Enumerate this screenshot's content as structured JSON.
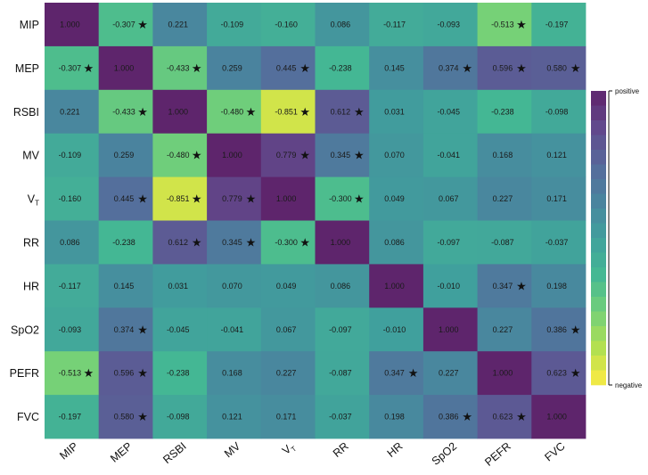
{
  "chart_data": {
    "type": "heatmap",
    "title": "",
    "xlabel": "",
    "ylabel": "",
    "rows": [
      "MIP",
      "MEP",
      "RSBI",
      "MV",
      "VT",
      "RR",
      "HR",
      "SpO2",
      "PEFR",
      "FVC"
    ],
    "columns": [
      "MIP",
      "MEP",
      "RSBI",
      "MV",
      "VT",
      "RR",
      "HR",
      "SpO2",
      "PEFR",
      "FVC"
    ],
    "row_labels": [
      {
        "main": "MIP",
        "sub": ""
      },
      {
        "main": "MEP",
        "sub": ""
      },
      {
        "main": "RSBI",
        "sub": ""
      },
      {
        "main": "MV",
        "sub": ""
      },
      {
        "main": "V",
        "sub": "T"
      },
      {
        "main": "RR",
        "sub": ""
      },
      {
        "main": "HR",
        "sub": ""
      },
      {
        "main": "SpO2",
        "sub": ""
      },
      {
        "main": "PEFR",
        "sub": ""
      },
      {
        "main": "FVC",
        "sub": ""
      }
    ],
    "column_labels": [
      {
        "main": "MIP",
        "sub": ""
      },
      {
        "main": "MEP",
        "sub": ""
      },
      {
        "main": "RSBI",
        "sub": ""
      },
      {
        "main": "MV",
        "sub": ""
      },
      {
        "main": "V",
        "sub": "T"
      },
      {
        "main": "RR",
        "sub": ""
      },
      {
        "main": "HR",
        "sub": ""
      },
      {
        "main": "SpO2",
        "sub": ""
      },
      {
        "main": "PEFR",
        "sub": ""
      },
      {
        "main": "FVC",
        "sub": ""
      }
    ],
    "values": [
      [
        1.0,
        -0.307,
        0.221,
        -0.109,
        -0.16,
        0.086,
        -0.117,
        -0.093,
        -0.513,
        -0.197
      ],
      [
        -0.307,
        1.0,
        -0.433,
        0.259,
        0.445,
        -0.238,
        0.145,
        0.374,
        0.596,
        0.58
      ],
      [
        0.221,
        -0.433,
        1.0,
        -0.48,
        -0.851,
        0.612,
        0.031,
        -0.045,
        -0.238,
        -0.098
      ],
      [
        -0.109,
        0.259,
        -0.48,
        1.0,
        0.779,
        0.345,
        0.07,
        -0.041,
        0.168,
        0.121
      ],
      [
        -0.16,
        0.445,
        -0.851,
        0.779,
        1.0,
        -0.3,
        0.049,
        0.067,
        0.227,
        0.171
      ],
      [
        0.086,
        -0.238,
        0.612,
        0.345,
        -0.3,
        1.0,
        0.086,
        -0.097,
        -0.087,
        -0.037
      ],
      [
        -0.117,
        0.145,
        0.031,
        0.07,
        0.049,
        0.086,
        1.0,
        -0.01,
        0.347,
        0.198
      ],
      [
        -0.093,
        0.374,
        -0.045,
        -0.041,
        0.067,
        -0.097,
        -0.01,
        1.0,
        0.227,
        0.386
      ],
      [
        -0.513,
        0.596,
        -0.238,
        0.168,
        0.227,
        -0.087,
        0.347,
        0.227,
        1.0,
        0.623
      ],
      [
        -0.197,
        0.58,
        -0.098,
        0.121,
        0.171,
        -0.037,
        0.198,
        0.386,
        0.623,
        1.0
      ]
    ],
    "significant": [
      [
        false,
        true,
        false,
        false,
        false,
        false,
        false,
        false,
        true,
        false
      ],
      [
        true,
        false,
        true,
        false,
        true,
        false,
        false,
        true,
        true,
        true
      ],
      [
        false,
        true,
        false,
        true,
        true,
        true,
        false,
        false,
        false,
        false
      ],
      [
        false,
        false,
        true,
        false,
        true,
        true,
        false,
        false,
        false,
        false
      ],
      [
        false,
        true,
        true,
        true,
        false,
        true,
        false,
        false,
        false,
        false
      ],
      [
        false,
        false,
        true,
        true,
        true,
        false,
        false,
        false,
        false,
        false
      ],
      [
        false,
        false,
        false,
        false,
        false,
        false,
        false,
        false,
        true,
        false
      ],
      [
        false,
        true,
        false,
        false,
        false,
        false,
        false,
        false,
        false,
        true
      ],
      [
        true,
        true,
        false,
        false,
        false,
        false,
        true,
        false,
        false,
        true
      ],
      [
        false,
        true,
        false,
        false,
        false,
        false,
        false,
        true,
        true,
        false
      ]
    ],
    "significance_marker": "★",
    "value_range": [
      -1,
      1
    ],
    "colorscale": "viridis-reversed",
    "legend": {
      "position": "right",
      "top_label": "positive",
      "bottom_label": "negative",
      "steps": 20
    },
    "grid": false
  }
}
